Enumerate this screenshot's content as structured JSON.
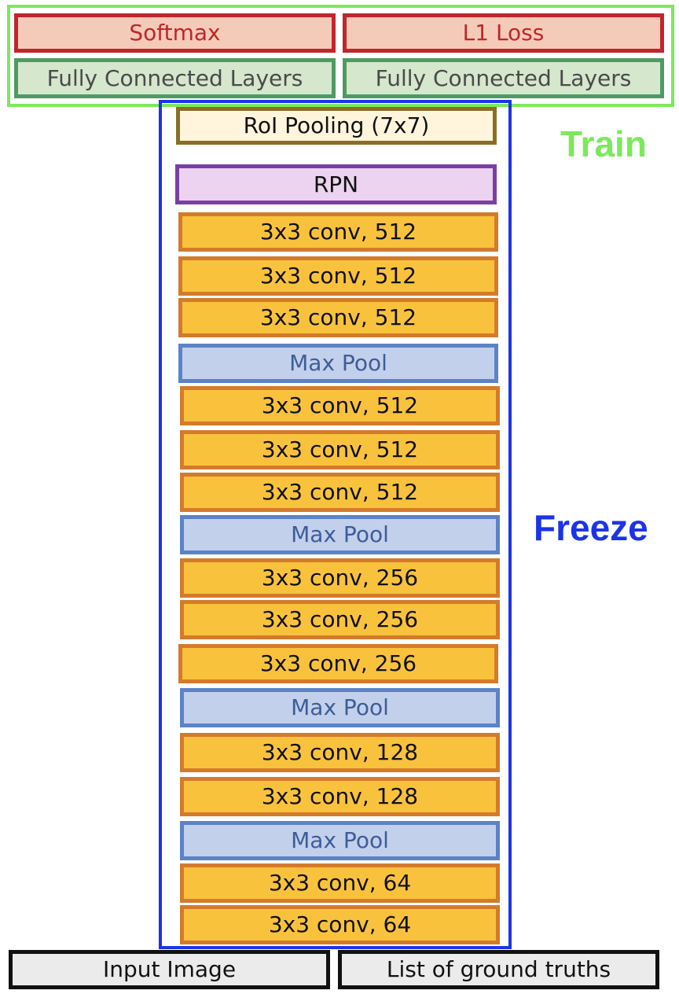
{
  "head": {
    "classification": "Softmax",
    "regression": "L1 Loss",
    "fc_left": "Fully Connected Layers",
    "fc_right": "Fully Connected Layers"
  },
  "backbone": {
    "roi_pooling": "RoI Pooling (7x7)",
    "rpn": "RPN",
    "layers": [
      "3x3 conv, 512",
      "3x3 conv, 512",
      "3x3 conv, 512",
      "Max Pool",
      "3x3 conv, 512",
      "3x3 conv, 512",
      "3x3 conv, 512",
      "Max Pool",
      "3x3 conv, 256",
      "3x3 conv, 256",
      "3x3 conv, 256",
      "Max Pool",
      "3x3 conv, 128",
      "3x3 conv, 128",
      "Max Pool",
      "3x3 conv, 64",
      "3x3 conv, 64"
    ]
  },
  "inputs": {
    "image": "Input Image",
    "ground_truths": "List of ground truths"
  },
  "labels": {
    "train": "Train",
    "freeze": "Freeze"
  },
  "colors": {
    "train": "#7ce95a",
    "freeze": "#1c34e8",
    "conv": "#f9c23d",
    "pool": "#c3d0ec"
  }
}
